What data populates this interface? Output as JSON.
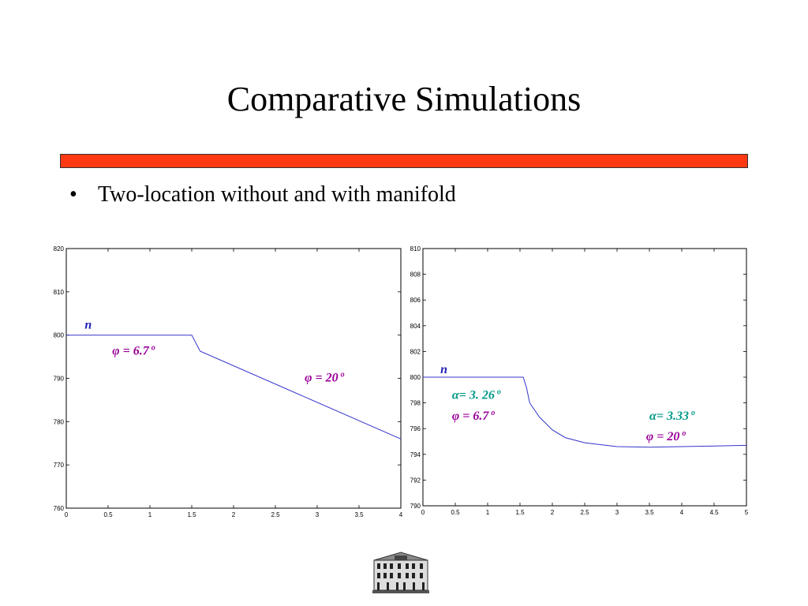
{
  "slide": {
    "title": "Comparative Simulations",
    "bullet_marker": "•",
    "bullet_text": "Two-location without and with manifold"
  },
  "colors": {
    "accent_bar": "#ff3a12",
    "curve": "#3333cc",
    "annotation_phi": "#990099",
    "annotation_alpha": "#009988",
    "annotation_n": "#2222bb"
  },
  "chart_data": [
    {
      "type": "line",
      "title": "",
      "xlabel": "",
      "ylabel": "",
      "xlim": [
        0,
        4
      ],
      "ylim": [
        760,
        820
      ],
      "xticks": [
        0,
        0.5,
        1,
        1.5,
        2,
        2.5,
        3,
        3.5,
        4
      ],
      "xtick_labels": [
        "0",
        "0.5",
        "1",
        "1.5",
        "2",
        "2.5",
        "3",
        "3.5",
        "4"
      ],
      "yticks": [
        760,
        770,
        780,
        790,
        800,
        810,
        820
      ],
      "ytick_labels": [
        "760",
        "770",
        "780",
        "790",
        "800",
        "810",
        "820"
      ],
      "grid": false,
      "series": [
        {
          "x": [
            0,
            1.5,
            1.6,
            4
          ],
          "y": [
            800,
            800,
            796.3,
            776
          ]
        }
      ],
      "annotations": [
        {
          "text": "n",
          "x": 0.22,
          "y": 801.5,
          "kind": "n"
        },
        {
          "text": "φ = 6.7",
          "sup": "o",
          "x": 0.55,
          "y": 795.5,
          "kind": "phi"
        },
        {
          "text": "φ = 20",
          "sup": "o",
          "x": 2.85,
          "y": 789.3,
          "kind": "phi"
        }
      ]
    },
    {
      "type": "line",
      "title": "",
      "xlabel": "",
      "ylabel": "",
      "xlim": [
        0,
        5
      ],
      "ylim": [
        790,
        810
      ],
      "xticks": [
        0,
        0.5,
        1,
        1.5,
        2,
        2.5,
        3,
        3.5,
        4,
        4.5,
        5
      ],
      "xtick_labels": [
        "0",
        "0.5",
        "1",
        "1.5",
        "2",
        "2.5",
        "3",
        "3.5",
        "4",
        "4.5",
        "5"
      ],
      "yticks": [
        790,
        792,
        794,
        796,
        798,
        800,
        802,
        804,
        806,
        808,
        810
      ],
      "ytick_labels": [
        "790",
        "792",
        "794",
        "796",
        "798",
        "800",
        "802",
        "804",
        "806",
        "808",
        "810"
      ],
      "grid": false,
      "series": [
        {
          "x": [
            0,
            1.55,
            1.6,
            1.65,
            1.8,
            2.0,
            2.2,
            2.5,
            3.0,
            3.5,
            4.0,
            4.5,
            5.0
          ],
          "y": [
            800,
            800,
            799.2,
            798.0,
            796.9,
            795.9,
            795.3,
            794.9,
            794.6,
            794.55,
            794.6,
            794.65,
            794.7
          ]
        }
      ],
      "annotations": [
        {
          "text": "n",
          "x": 0.27,
          "y": 800.3,
          "kind": "n"
        },
        {
          "text": "α= 3. 26",
          "sup": "o",
          "x": 0.45,
          "y": 798.3,
          "kind": "alpha"
        },
        {
          "text": "φ = 6.7",
          "sup": "o",
          "x": 0.45,
          "y": 796.7,
          "kind": "phi"
        },
        {
          "text": "α= 3.33",
          "sup": "o",
          "x": 3.5,
          "y": 796.7,
          "kind": "alpha"
        },
        {
          "text": "φ = 20",
          "sup": "o",
          "x": 3.45,
          "y": 795.1,
          "kind": "phi"
        }
      ]
    }
  ]
}
